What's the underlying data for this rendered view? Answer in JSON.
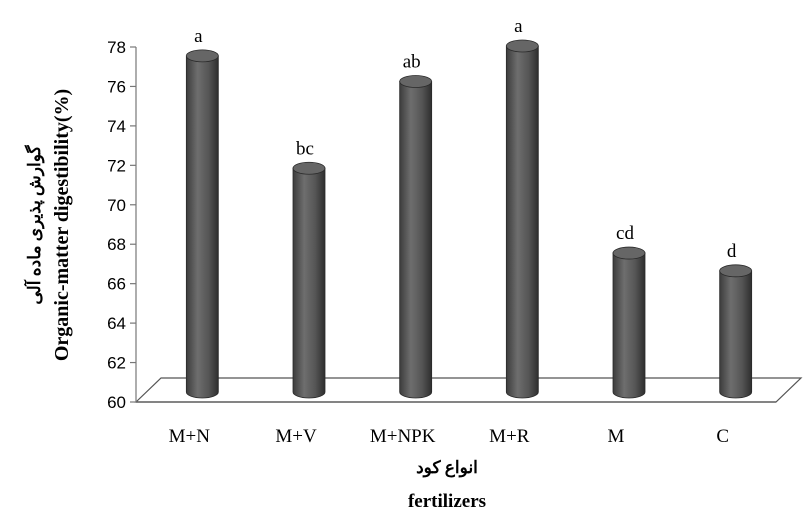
{
  "chart_data": {
    "type": "bar",
    "categories": [
      "M+N",
      "M+V",
      "M+NPK",
      "M+R",
      "M",
      "C"
    ],
    "values": [
      77.5,
      71.8,
      76.2,
      78.0,
      67.5,
      66.6
    ],
    "data_labels": [
      "a",
      "bc",
      "ab",
      "a",
      "cd",
      "d"
    ],
    "xlabel_fa": "انواع کود",
    "xlabel": "fertilizers",
    "ylabel_fa": "گوارش پذیری ماده آلی",
    "ylabel": "Organic-matter digestibility(%)",
    "ylim": [
      60,
      78
    ],
    "yticks": [
      60,
      62,
      64,
      66,
      68,
      70,
      72,
      74,
      76,
      78
    ],
    "grid": false,
    "legend": false,
    "bar_color": "#555555"
  }
}
